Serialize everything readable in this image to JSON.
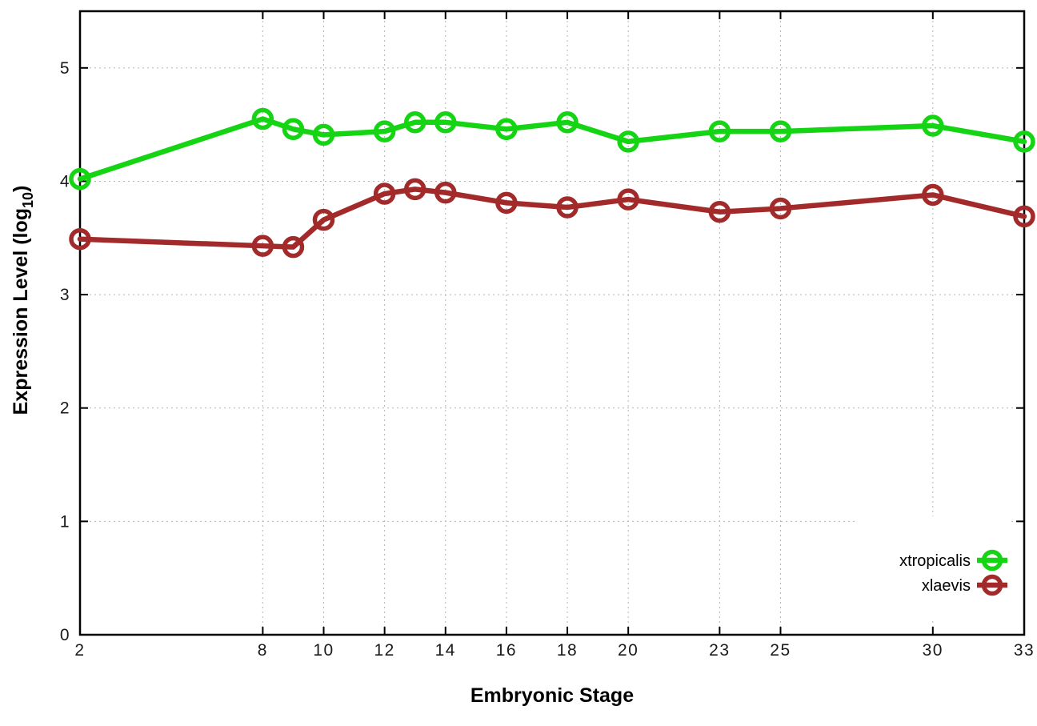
{
  "figure": {
    "background": "#ffffff"
  },
  "chart_data": {
    "type": "line",
    "title": "",
    "xlabel": "Embryonic Stage",
    "ylabel": "Expression Level (log10)",
    "ylabel_parts": {
      "prefix": "Expression Level (log",
      "sub": "10",
      "suffix": ")"
    },
    "x": [
      2,
      8,
      9,
      10,
      12,
      13,
      14,
      16,
      18,
      20,
      23,
      25,
      30,
      33
    ],
    "xticks": [
      2,
      8,
      10,
      12,
      14,
      16,
      18,
      20,
      23,
      25,
      30,
      33
    ],
    "yticks": [
      0,
      1,
      2,
      3,
      4,
      5
    ],
    "xlim": [
      2,
      33
    ],
    "ylim": [
      0,
      5.5
    ],
    "grid": true,
    "grid_style": "dotted",
    "grid_color": "#b4b4b4",
    "axis_color": "#000000",
    "marker": "open-circle",
    "legend_position": "inside-right-middle",
    "series": [
      {
        "name": "xtropicalis",
        "color": "#14d414",
        "values": [
          4.02,
          4.55,
          4.46,
          4.41,
          4.44,
          4.52,
          4.52,
          4.46,
          4.52,
          4.35,
          4.44,
          4.44,
          4.49,
          4.35
        ]
      },
      {
        "name": "xlaevis",
        "color": "#a32a2a",
        "values": [
          3.49,
          3.43,
          3.42,
          3.66,
          3.89,
          3.93,
          3.9,
          3.81,
          3.77,
          3.84,
          3.73,
          3.76,
          3.88,
          3.69
        ]
      }
    ]
  }
}
